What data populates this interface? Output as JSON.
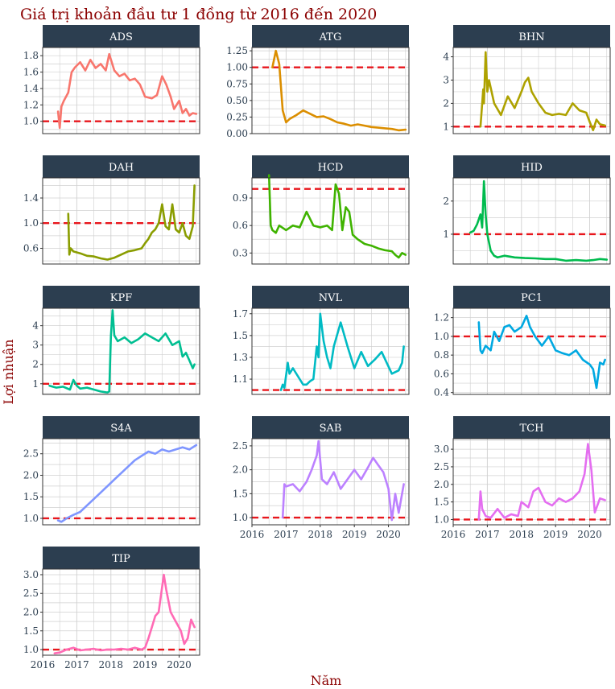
{
  "figure": {
    "title": "Giá trị khoản đầu tư 1 đồng từ 2016 đến 2020",
    "xlabel": "Năm",
    "ylabel": "Lợi nhuận",
    "x_tick_labels": [
      "2016",
      "2017",
      "2018",
      "2019",
      "2020"
    ],
    "colors": {
      "title": "#8b0000",
      "strip": "#2c3e50",
      "strip_text": "#ffffff",
      "reference": "#e8161c",
      "grid": "#d0d0d0"
    }
  },
  "chart_data": [
    {
      "type": "line",
      "title": "ADS",
      "color": "#f8766d",
      "xlim": [
        2016,
        2020.6
      ],
      "ylim": [
        0.85,
        1.9
      ],
      "yticks": [
        1.0,
        1.2,
        1.4,
        1.6,
        1.8
      ],
      "ytick_labels": [
        "1.0",
        "1.2",
        "1.4",
        "1.6",
        "1.8"
      ],
      "reference": 1.0,
      "x": [
        2016.45,
        2016.5,
        2016.55,
        2016.62,
        2016.75,
        2016.85,
        2016.95,
        2017.1,
        2017.25,
        2017.4,
        2017.55,
        2017.7,
        2017.85,
        2017.95,
        2018.1,
        2018.25,
        2018.4,
        2018.55,
        2018.7,
        2018.85,
        2019.0,
        2019.2,
        2019.35,
        2019.5,
        2019.62,
        2019.75,
        2019.85,
        2020.0,
        2020.1,
        2020.2,
        2020.3,
        2020.4,
        2020.5
      ],
      "y": [
        1.12,
        0.92,
        1.18,
        1.25,
        1.35,
        1.6,
        1.66,
        1.72,
        1.62,
        1.75,
        1.65,
        1.7,
        1.62,
        1.82,
        1.62,
        1.55,
        1.58,
        1.5,
        1.52,
        1.45,
        1.3,
        1.28,
        1.32,
        1.55,
        1.45,
        1.3,
        1.15,
        1.25,
        1.1,
        1.15,
        1.07,
        1.1,
        1.09
      ]
    },
    {
      "type": "line",
      "title": "ATG",
      "color": "#db8e00",
      "xlim": [
        2016,
        2020.6
      ],
      "ylim": [
        0,
        1.3
      ],
      "yticks": [
        0,
        0.25,
        0.5,
        0.75,
        1.0,
        1.25
      ],
      "ytick_labels": [
        "0.00",
        "0.25",
        "0.50",
        "0.75",
        "1.00",
        "1.25"
      ],
      "reference": 1.0,
      "x": [
        2016.6,
        2016.7,
        2016.8,
        2016.9,
        2017.0,
        2017.1,
        2017.3,
        2017.5,
        2017.7,
        2017.9,
        2018.1,
        2018.3,
        2018.5,
        2018.7,
        2018.9,
        2019.1,
        2019.3,
        2019.5,
        2019.7,
        2019.9,
        2020.1,
        2020.3,
        2020.5
      ],
      "y": [
        1.0,
        1.25,
        1.05,
        0.35,
        0.17,
        0.22,
        0.28,
        0.35,
        0.3,
        0.25,
        0.26,
        0.22,
        0.17,
        0.15,
        0.12,
        0.14,
        0.12,
        0.1,
        0.09,
        0.08,
        0.07,
        0.05,
        0.06
      ]
    },
    {
      "type": "line",
      "title": "BHN",
      "color": "#aea200",
      "xlim": [
        2016,
        2020.6
      ],
      "ylim": [
        0.7,
        4.4
      ],
      "yticks": [
        1,
        2,
        3,
        4
      ],
      "ytick_labels": [
        "1",
        "2",
        "3",
        "4"
      ],
      "reference": 1.0,
      "x": [
        2016.8,
        2016.88,
        2016.9,
        2016.95,
        2017.0,
        2017.05,
        2017.2,
        2017.4,
        2017.6,
        2017.8,
        2018.0,
        2018.1,
        2018.2,
        2018.3,
        2018.5,
        2018.7,
        2018.9,
        2019.1,
        2019.3,
        2019.5,
        2019.7,
        2019.9,
        2020.0,
        2020.1,
        2020.2,
        2020.3,
        2020.45
      ],
      "y": [
        1.0,
        2.6,
        2.0,
        4.2,
        2.5,
        3.0,
        2.0,
        1.5,
        2.3,
        1.8,
        2.5,
        2.9,
        3.1,
        2.5,
        2.0,
        1.6,
        1.5,
        1.55,
        1.5,
        2.0,
        1.7,
        1.6,
        1.2,
        0.85,
        1.3,
        1.1,
        1.05
      ]
    },
    {
      "type": "line",
      "title": "DAH",
      "color": "#8a9d00",
      "xlim": [
        2016,
        2020.6
      ],
      "ylim": [
        0.35,
        1.72
      ],
      "yticks": [
        0.6,
        1.0,
        1.4
      ],
      "ytick_labels": [
        "0.6",
        "1.0",
        "1.4"
      ],
      "reference": 1.0,
      "x": [
        2016.75,
        2016.78,
        2016.82,
        2016.9,
        2017.1,
        2017.3,
        2017.5,
        2017.7,
        2017.9,
        2018.1,
        2018.3,
        2018.5,
        2018.7,
        2018.9,
        2019.0,
        2019.1,
        2019.2,
        2019.3,
        2019.4,
        2019.5,
        2019.6,
        2019.7,
        2019.8,
        2019.9,
        2020.0,
        2020.1,
        2020.2,
        2020.3,
        2020.4,
        2020.45
      ],
      "y": [
        1.15,
        0.5,
        0.6,
        0.55,
        0.52,
        0.48,
        0.47,
        0.44,
        0.42,
        0.45,
        0.5,
        0.55,
        0.57,
        0.6,
        0.68,
        0.75,
        0.85,
        0.9,
        1.0,
        1.3,
        0.95,
        0.9,
        1.3,
        0.9,
        0.85,
        1.0,
        0.8,
        0.75,
        0.95,
        1.6
      ]
    },
    {
      "type": "line",
      "title": "HCD",
      "color": "#3fb300",
      "xlim": [
        2016,
        2020.6
      ],
      "ylim": [
        0.18,
        1.12
      ],
      "yticks": [
        0.3,
        0.6,
        0.9
      ],
      "ytick_labels": [
        "0.3",
        "0.6",
        "0.9"
      ],
      "reference": 1.0,
      "x": [
        2016.5,
        2016.55,
        2016.6,
        2016.7,
        2016.8,
        2017.0,
        2017.2,
        2017.4,
        2017.6,
        2017.8,
        2018.0,
        2018.2,
        2018.35,
        2018.45,
        2018.55,
        2018.65,
        2018.75,
        2018.85,
        2018.95,
        2019.1,
        2019.3,
        2019.5,
        2019.7,
        2019.9,
        2020.1,
        2020.2,
        2020.3,
        2020.4,
        2020.5
      ],
      "y": [
        1.15,
        0.6,
        0.55,
        0.52,
        0.6,
        0.55,
        0.6,
        0.58,
        0.75,
        0.6,
        0.58,
        0.6,
        0.55,
        1.05,
        0.95,
        0.55,
        0.8,
        0.75,
        0.5,
        0.45,
        0.4,
        0.38,
        0.35,
        0.33,
        0.32,
        0.28,
        0.25,
        0.3,
        0.28
      ]
    },
    {
      "type": "line",
      "title": "HID",
      "color": "#00bb4e",
      "xlim": [
        2016,
        2020.6
      ],
      "ylim": [
        0.1,
        2.7
      ],
      "yticks": [
        1,
        2
      ],
      "ytick_labels": [
        "1",
        "2"
      ],
      "reference": 1.0,
      "x": [
        2016.5,
        2016.6,
        2016.7,
        2016.8,
        2016.85,
        2016.9,
        2016.95,
        2017.0,
        2017.1,
        2017.2,
        2017.3,
        2017.5,
        2017.8,
        2018.1,
        2018.4,
        2018.7,
        2019.0,
        2019.3,
        2019.6,
        2019.9,
        2020.1,
        2020.3,
        2020.5
      ],
      "y": [
        1.05,
        1.1,
        1.3,
        1.6,
        1.2,
        2.6,
        1.6,
        1.0,
        0.5,
        0.35,
        0.3,
        0.35,
        0.3,
        0.28,
        0.27,
        0.25,
        0.25,
        0.2,
        0.22,
        0.2,
        0.22,
        0.25,
        0.23
      ]
    },
    {
      "type": "line",
      "title": "KPF",
      "color": "#00bf92",
      "xlim": [
        2016,
        2020.6
      ],
      "ylim": [
        0.45,
        4.9
      ],
      "yticks": [
        1,
        2,
        3,
        4
      ],
      "ytick_labels": [
        "1",
        "2",
        "3",
        "4"
      ],
      "reference": 1.0,
      "x": [
        2016.2,
        2016.4,
        2016.6,
        2016.8,
        2016.9,
        2017.0,
        2017.1,
        2017.3,
        2017.5,
        2017.7,
        2017.9,
        2017.95,
        2018.0,
        2018.05,
        2018.1,
        2018.2,
        2018.4,
        2018.6,
        2018.8,
        2019.0,
        2019.2,
        2019.4,
        2019.6,
        2019.8,
        2020.0,
        2020.1,
        2020.2,
        2020.3,
        2020.4,
        2020.45
      ],
      "y": [
        0.9,
        0.8,
        0.85,
        0.7,
        1.2,
        0.9,
        0.75,
        0.8,
        0.7,
        0.6,
        0.55,
        0.6,
        3.5,
        4.8,
        3.5,
        3.2,
        3.4,
        3.1,
        3.3,
        3.6,
        3.4,
        3.2,
        3.6,
        3.0,
        3.2,
        2.4,
        2.6,
        2.2,
        1.8,
        2.0
      ]
    },
    {
      "type": "line",
      "title": "NVL",
      "color": "#00bbc4",
      "xlim": [
        2016,
        2020.6
      ],
      "ylim": [
        0.96,
        1.75
      ],
      "yticks": [
        1.1,
        1.3,
        1.5,
        1.7
      ],
      "ytick_labels": [
        "1.1",
        "1.3",
        "1.5",
        "1.7"
      ],
      "reference": 1.0,
      "x": [
        2016.85,
        2016.9,
        2016.95,
        2017.05,
        2017.1,
        2017.2,
        2017.4,
        2017.5,
        2017.6,
        2017.7,
        2017.8,
        2017.85,
        2017.9,
        2017.95,
        2018.0,
        2018.1,
        2018.2,
        2018.3,
        2018.4,
        2018.6,
        2018.8,
        2019.0,
        2019.2,
        2019.4,
        2019.6,
        2019.8,
        2019.95,
        2020.1,
        2020.3,
        2020.4,
        2020.45
      ],
      "y": [
        1.0,
        1.05,
        1.02,
        1.25,
        1.15,
        1.2,
        1.1,
        1.05,
        1.05,
        1.08,
        1.1,
        1.25,
        1.4,
        1.3,
        1.7,
        1.45,
        1.3,
        1.2,
        1.4,
        1.62,
        1.4,
        1.2,
        1.35,
        1.22,
        1.28,
        1.35,
        1.25,
        1.15,
        1.18,
        1.25,
        1.4
      ]
    },
    {
      "type": "line",
      "title": "PC1",
      "color": "#00a8e1",
      "xlim": [
        2016,
        2020.6
      ],
      "ylim": [
        0.38,
        1.3
      ],
      "yticks": [
        0.4,
        0.6,
        0.8,
        1.0,
        1.2
      ],
      "ytick_labels": [
        "0.4",
        "0.6",
        "0.8",
        "1.0",
        "1.2"
      ],
      "reference": 1.0,
      "x": [
        2016.75,
        2016.8,
        2016.85,
        2016.95,
        2017.1,
        2017.2,
        2017.35,
        2017.5,
        2017.65,
        2017.8,
        2018.0,
        2018.15,
        2018.25,
        2018.4,
        2018.6,
        2018.8,
        2019.0,
        2019.2,
        2019.4,
        2019.6,
        2019.8,
        2020.0,
        2020.1,
        2020.2,
        2020.3,
        2020.4,
        2020.45
      ],
      "y": [
        1.15,
        0.85,
        0.82,
        0.9,
        0.85,
        1.05,
        0.95,
        1.1,
        1.12,
        1.05,
        1.1,
        1.22,
        1.1,
        1.0,
        0.9,
        1.0,
        0.85,
        0.82,
        0.8,
        0.85,
        0.75,
        0.7,
        0.65,
        0.45,
        0.72,
        0.7,
        0.75
      ]
    },
    {
      "type": "line",
      "title": "S4A",
      "color": "#7f96ff",
      "xlim": [
        2016,
        2020.6
      ],
      "ylim": [
        0.85,
        2.85
      ],
      "yticks": [
        1.0,
        1.5,
        2.0,
        2.5
      ],
      "ytick_labels": [
        "1.0",
        "1.5",
        "2.0",
        "2.5"
      ],
      "reference": 1.0,
      "x": [
        2016.45,
        2016.55,
        2016.7,
        2016.9,
        2017.1,
        2017.3,
        2017.5,
        2017.7,
        2017.9,
        2018.1,
        2018.3,
        2018.5,
        2018.7,
        2018.9,
        2019.1,
        2019.3,
        2019.5,
        2019.7,
        2019.9,
        2020.1,
        2020.3,
        2020.5
      ],
      "y": [
        0.95,
        0.92,
        1.0,
        1.08,
        1.15,
        1.3,
        1.45,
        1.6,
        1.75,
        1.9,
        2.05,
        2.2,
        2.35,
        2.45,
        2.55,
        2.5,
        2.6,
        2.55,
        2.6,
        2.65,
        2.6,
        2.7
      ]
    },
    {
      "type": "line",
      "title": "SAB",
      "color": "#bc81ff",
      "xlim": [
        2016,
        2020.6
      ],
      "ylim": [
        0.85,
        2.65
      ],
      "yticks": [
        1.0,
        1.5,
        2.0,
        2.5
      ],
      "ytick_labels": [
        "1.0",
        "1.5",
        "2.0",
        "2.5"
      ],
      "reference": 1.0,
      "x": [
        2016.9,
        2016.95,
        2017.0,
        2017.2,
        2017.4,
        2017.6,
        2017.75,
        2017.9,
        2017.95,
        2018.05,
        2018.2,
        2018.4,
        2018.6,
        2018.8,
        2019.0,
        2019.2,
        2019.4,
        2019.55,
        2019.7,
        2019.85,
        2020.0,
        2020.1,
        2020.2,
        2020.3,
        2020.45
      ],
      "y": [
        1.0,
        1.7,
        1.65,
        1.7,
        1.55,
        1.75,
        2.0,
        2.3,
        2.6,
        1.8,
        1.7,
        1.95,
        1.6,
        1.8,
        2.0,
        1.8,
        2.05,
        2.25,
        2.1,
        1.95,
        1.6,
        0.95,
        1.5,
        1.1,
        1.7
      ]
    },
    {
      "type": "line",
      "title": "TCH",
      "color": "#e46ef0",
      "xlim": [
        2016,
        2020.6
      ],
      "ylim": [
        0.85,
        3.3
      ],
      "yticks": [
        1.0,
        1.5,
        2.0,
        2.5,
        3.0
      ],
      "ytick_labels": [
        "1.0",
        "1.5",
        "2.0",
        "2.5",
        "3.0"
      ],
      "reference": 1.0,
      "x": [
        2016.75,
        2016.8,
        2016.85,
        2016.95,
        2017.1,
        2017.3,
        2017.5,
        2017.7,
        2017.9,
        2018.0,
        2018.2,
        2018.35,
        2018.5,
        2018.7,
        2018.9,
        2019.1,
        2019.3,
        2019.5,
        2019.7,
        2019.85,
        2019.95,
        2020.05,
        2020.15,
        2020.3,
        2020.45
      ],
      "y": [
        1.0,
        1.8,
        1.3,
        1.1,
        1.05,
        1.3,
        1.05,
        1.15,
        1.1,
        1.5,
        1.35,
        1.8,
        1.9,
        1.5,
        1.4,
        1.6,
        1.5,
        1.6,
        1.8,
        2.3,
        3.15,
        2.4,
        1.2,
        1.6,
        1.55
      ]
    },
    {
      "type": "line",
      "title": "TIP",
      "color": "#ff6bb5",
      "xlim": [
        2016,
        2020.6
      ],
      "ylim": [
        0.85,
        3.15
      ],
      "yticks": [
        1.0,
        1.5,
        2.0,
        2.5,
        3.0
      ],
      "ytick_labels": [
        "1.0",
        "1.5",
        "2.0",
        "2.5",
        "3.0"
      ],
      "reference": 1.0,
      "x": [
        2016.35,
        2016.5,
        2016.7,
        2016.9,
        2017.1,
        2017.3,
        2017.5,
        2017.7,
        2017.9,
        2018.1,
        2018.3,
        2018.5,
        2018.7,
        2018.9,
        2019.0,
        2019.1,
        2019.2,
        2019.3,
        2019.4,
        2019.55,
        2019.62,
        2019.75,
        2019.9,
        2020.05,
        2020.15,
        2020.25,
        2020.35,
        2020.45
      ],
      "y": [
        0.9,
        0.92,
        1.0,
        1.05,
        0.98,
        1.0,
        1.02,
        0.98,
        1.0,
        1.0,
        1.02,
        1.0,
        1.05,
        1.0,
        1.05,
        1.3,
        1.6,
        1.9,
        2.0,
        3.0,
        2.6,
        2.0,
        1.75,
        1.5,
        1.15,
        1.3,
        1.8,
        1.6
      ]
    }
  ]
}
